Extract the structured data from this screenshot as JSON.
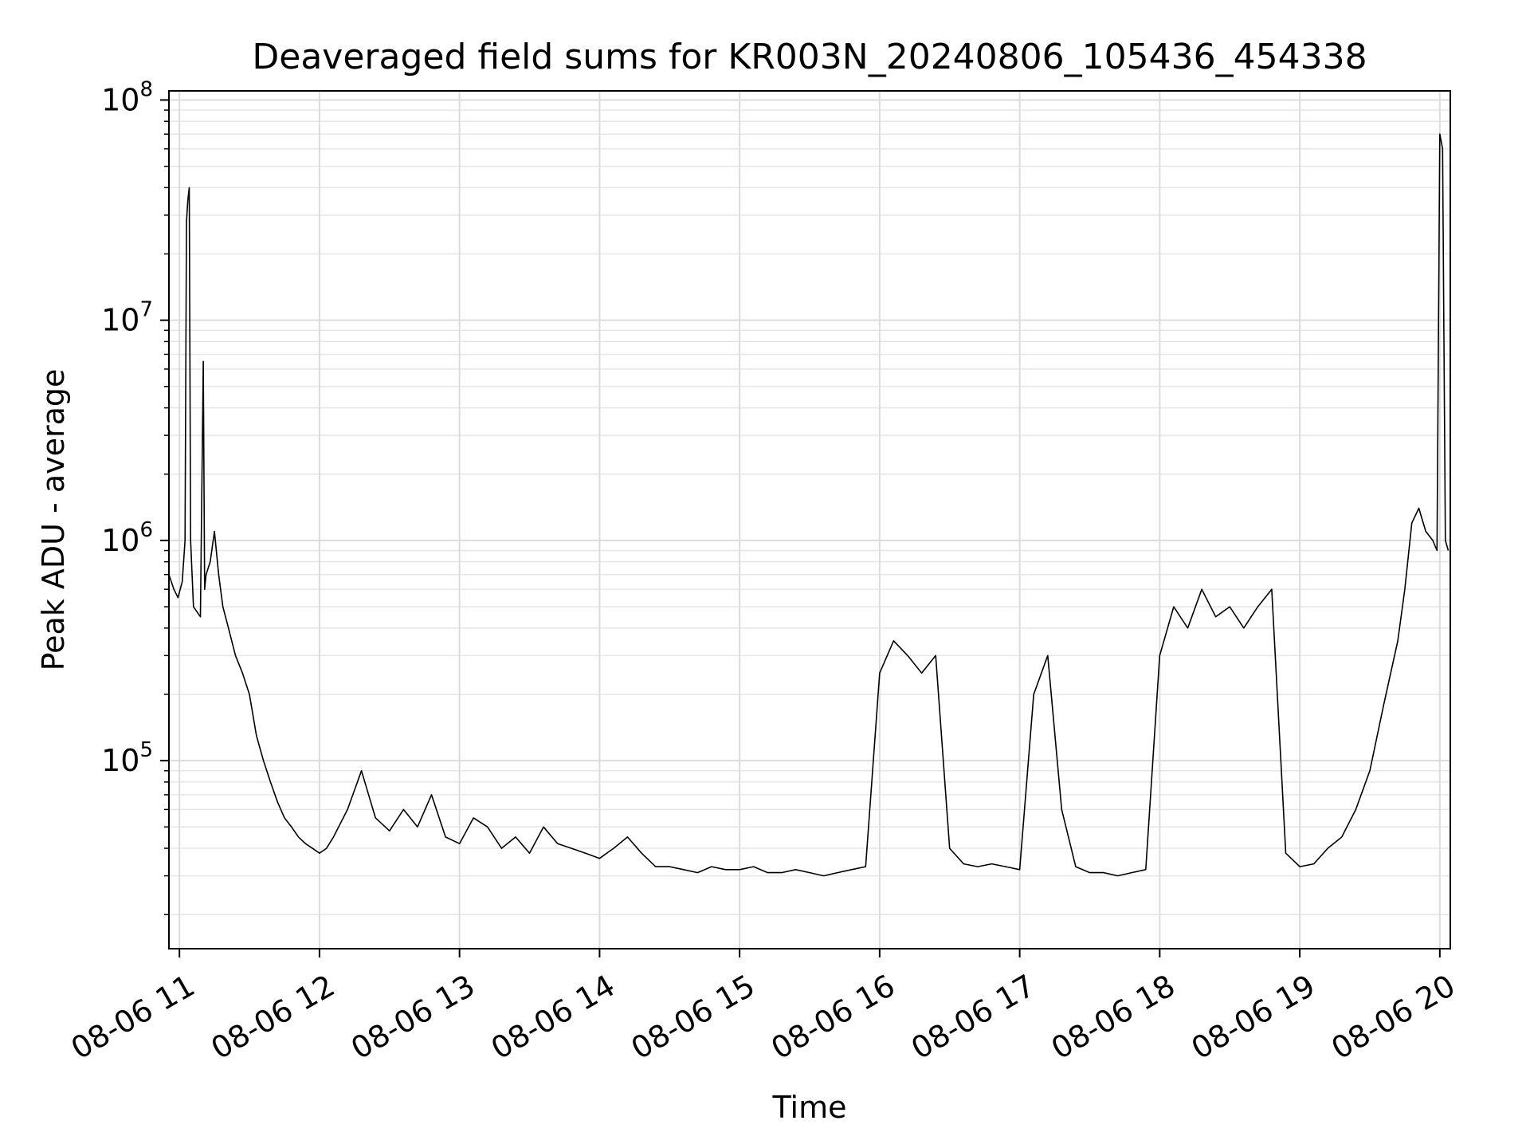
{
  "chart_data": {
    "type": "line",
    "title": "Deaveraged field sums for KR003N_20240806_105436_454338",
    "xlabel": "Time",
    "ylabel": "Peak ADU - average",
    "yscale": "log",
    "ylim": [
      14000,
      110000000
    ],
    "xlim": [
      10.925,
      20.075
    ],
    "grid": true,
    "line_color": "#000000",
    "x_ticks": [
      {
        "value": 11,
        "label": "08-06 11"
      },
      {
        "value": 12,
        "label": "08-06 12"
      },
      {
        "value": 13,
        "label": "08-06 13"
      },
      {
        "value": 14,
        "label": "08-06 14"
      },
      {
        "value": 15,
        "label": "08-06 15"
      },
      {
        "value": 16,
        "label": "08-06 16"
      },
      {
        "value": 17,
        "label": "08-06 17"
      },
      {
        "value": 18,
        "label": "08-06 18"
      },
      {
        "value": 19,
        "label": "08-06 19"
      },
      {
        "value": 20,
        "label": "08-06 20"
      }
    ],
    "y_ticks": [
      {
        "value": 100000,
        "base": "10",
        "exp": "5"
      },
      {
        "value": 1000000,
        "base": "10",
        "exp": "6"
      },
      {
        "value": 10000000,
        "base": "10",
        "exp": "7"
      },
      {
        "value": 100000000,
        "base": "10",
        "exp": "8"
      }
    ],
    "series": [
      {
        "x": [
          10.92,
          10.96,
          10.99,
          11.02,
          11.04,
          11.05,
          11.06,
          11.07,
          11.08,
          11.1,
          11.15,
          11.17,
          11.18,
          11.19,
          11.22,
          11.25,
          11.28,
          11.31,
          11.35,
          11.4,
          11.45,
          11.5,
          11.55,
          11.6,
          11.65,
          11.7,
          11.75,
          11.8,
          11.85,
          11.9,
          11.95,
          12.0,
          12.05,
          12.1,
          12.2,
          12.3,
          12.4,
          12.5,
          12.6,
          12.7,
          12.8,
          12.9,
          13.0,
          13.1,
          13.2,
          13.3,
          13.4,
          13.5,
          13.6,
          13.7,
          13.8,
          13.9,
          14.0,
          14.1,
          14.2,
          14.3,
          14.4,
          14.5,
          14.6,
          14.7,
          14.8,
          14.9,
          15.0,
          15.1,
          15.2,
          15.3,
          15.4,
          15.5,
          15.6,
          15.7,
          15.8,
          15.9,
          16.0,
          16.1,
          16.2,
          16.3,
          16.4,
          16.5,
          16.6,
          16.7,
          16.8,
          16.9,
          17.0,
          17.1,
          17.2,
          17.3,
          17.4,
          17.5,
          17.6,
          17.7,
          17.8,
          17.9,
          18.0,
          18.1,
          18.2,
          18.3,
          18.4,
          18.5,
          18.6,
          18.7,
          18.8,
          18.9,
          19.0,
          19.1,
          19.2,
          19.3,
          19.4,
          19.5,
          19.6,
          19.7,
          19.75,
          19.8,
          19.85,
          19.9,
          19.95,
          19.98,
          20.0,
          20.02,
          20.04,
          20.06
        ],
        "y": [
          700000,
          600000,
          550000,
          650000,
          1000000,
          28000000,
          35000000,
          40000000,
          1000000,
          500000,
          450000,
          6500000,
          600000,
          700000,
          800000,
          1100000,
          700000,
          500000,
          400000,
          300000,
          250000,
          200000,
          130000,
          100000,
          80000,
          65000,
          55000,
          50000,
          45000,
          42000,
          40000,
          38000,
          40000,
          45000,
          60000,
          90000,
          55000,
          48000,
          60000,
          50000,
          70000,
          45000,
          42000,
          55000,
          50000,
          40000,
          45000,
          38000,
          50000,
          42000,
          40000,
          38000,
          36000,
          40000,
          45000,
          38000,
          33000,
          33000,
          32000,
          31000,
          33000,
          32000,
          32000,
          33000,
          31000,
          31000,
          32000,
          31000,
          30000,
          31000,
          32000,
          33000,
          250000,
          350000,
          300000,
          250000,
          300000,
          40000,
          34000,
          33000,
          34000,
          33000,
          32000,
          200000,
          300000,
          60000,
          33000,
          31000,
          31000,
          30000,
          31000,
          32000,
          300000,
          500000,
          400000,
          600000,
          450000,
          500000,
          400000,
          500000,
          600000,
          38000,
          33000,
          34000,
          40000,
          45000,
          60000,
          90000,
          180000,
          350000,
          600000,
          1200000,
          1400000,
          1100000,
          1000000,
          900000,
          70000000,
          60000000,
          1000000,
          900000
        ]
      }
    ]
  }
}
